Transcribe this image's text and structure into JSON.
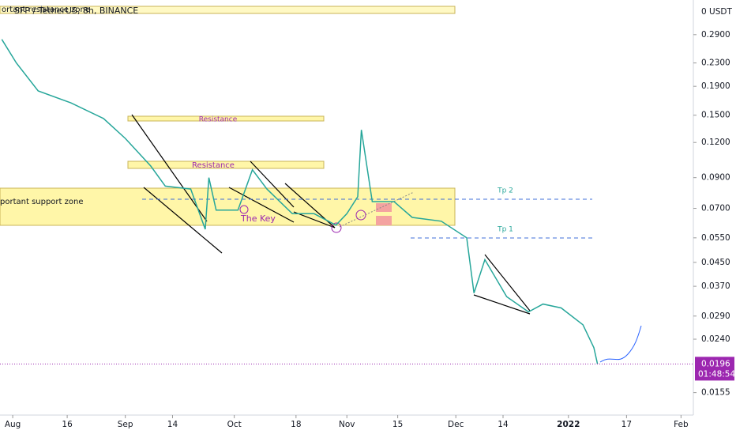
{
  "chart_data": {
    "type": "line",
    "title": "SFP / TetherUS, 8h, BINANCE",
    "y_unit_label": "0 USDT",
    "log_scale": true,
    "color": "#26a69a",
    "x": [
      -3,
      1,
      7,
      16,
      25,
      31,
      38,
      42,
      49,
      53,
      54,
      56,
      62,
      66,
      70,
      77,
      83,
      89,
      92,
      95,
      96,
      99,
      105,
      110,
      118,
      125,
      127,
      130,
      136,
      142,
      146,
      151,
      157,
      160,
      161
    ],
    "values": [
      0.279,
      0.23,
      0.183,
      0.166,
      0.146,
      0.124,
      0.099,
      0.084,
      0.082,
      0.059,
      0.09,
      0.069,
      0.069,
      0.096,
      0.082,
      0.067,
      0.067,
      0.061,
      0.067,
      0.077,
      0.133,
      0.074,
      0.074,
      0.065,
      0.063,
      0.055,
      0.035,
      0.046,
      0.034,
      0.03,
      0.032,
      0.031,
      0.027,
      0.0224,
      0.0196
    ],
    "xlim": [
      -3.5,
      187.4
    ],
    "xticks": [
      {
        "value": 0,
        "label": "Aug"
      },
      {
        "value": 15,
        "label": "16"
      },
      {
        "value": 31,
        "label": "Sep"
      },
      {
        "value": 44,
        "label": "14"
      },
      {
        "value": 61,
        "label": "Oct"
      },
      {
        "value": 78,
        "label": "18"
      },
      {
        "value": 92,
        "label": "Nov"
      },
      {
        "value": 106,
        "label": "15"
      },
      {
        "value": 122,
        "label": "Dec"
      },
      {
        "value": 135,
        "label": "14"
      },
      {
        "value": 153,
        "label": "2022"
      },
      {
        "value": 169,
        "label": "17"
      },
      {
        "value": 184,
        "label": "Feb"
      }
    ],
    "ylim": [
      0.0129,
      0.385
    ],
    "yticks": [
      {
        "value": 0.29,
        "label": "0.2900"
      },
      {
        "value": 0.23,
        "label": "0.2300"
      },
      {
        "value": 0.19,
        "label": "0.1900"
      },
      {
        "value": 0.15,
        "label": "0.1500"
      },
      {
        "value": 0.12,
        "label": "0.1200"
      },
      {
        "value": 0.09,
        "label": "0.0900"
      },
      {
        "value": 0.07,
        "label": "0.0700"
      },
      {
        "value": 0.055,
        "label": "0.0550"
      },
      {
        "value": 0.045,
        "label": "0.0450"
      },
      {
        "value": 0.037,
        "label": "0.0370"
      },
      {
        "value": 0.029,
        "label": "0.0290"
      },
      {
        "value": 0.024,
        "label": "0.0240"
      },
      {
        "value": 0.0155,
        "label": "0.0155"
      }
    ],
    "last_price": 0.0196,
    "countdown": "01:48:54",
    "annotations": {
      "top_zone": "ortant resistance zone",
      "resistance_1": "Resistance",
      "resistance_2": "Resistance",
      "support_zone": "portant support zone",
      "key": "The Key",
      "tp2": "Tp 2",
      "tp1": "Tp 1"
    }
  }
}
